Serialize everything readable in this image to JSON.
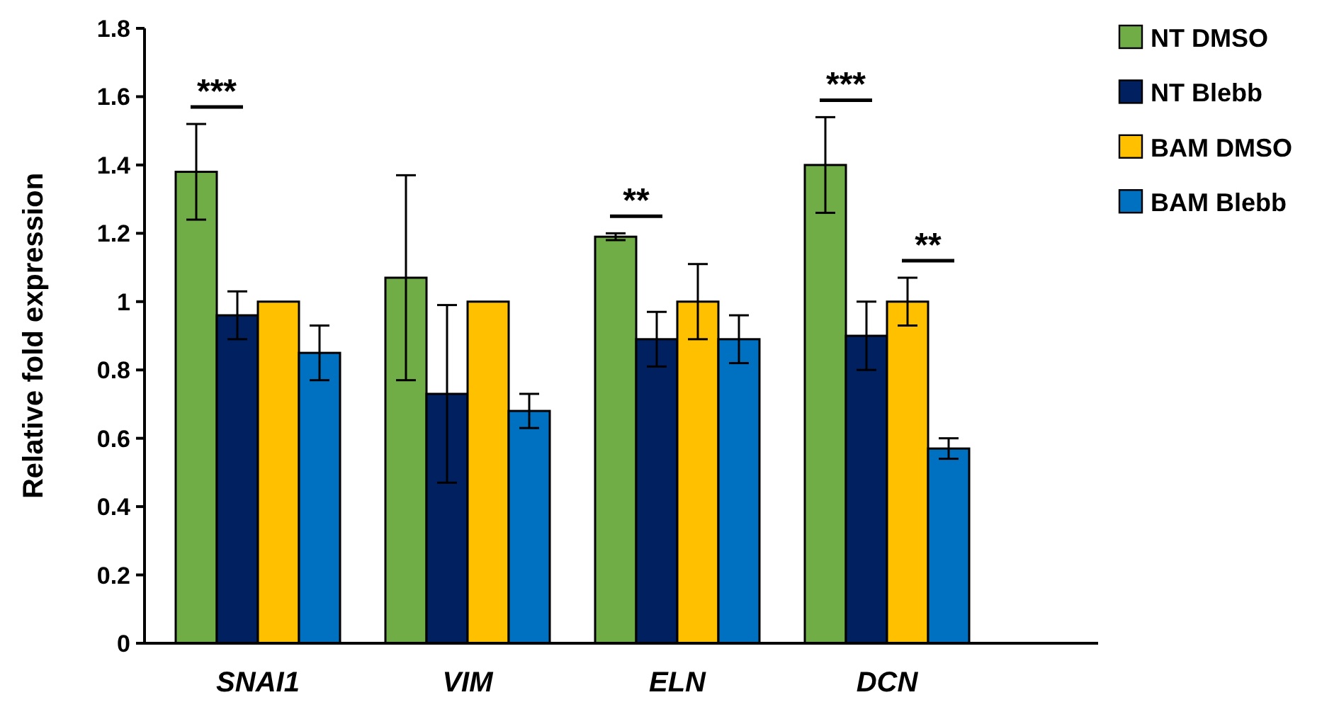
{
  "chart_data": {
    "type": "bar",
    "ylabel": "Relative fold expression",
    "categories": [
      "SNAI1",
      "VIM",
      "ELN",
      "DCN"
    ],
    "series": [
      {
        "name": "NT DMSO",
        "color": "#70ad47",
        "values": [
          1.38,
          1.07,
          1.19,
          1.4
        ],
        "errors": [
          0.14,
          0.3,
          0.01,
          0.14
        ]
      },
      {
        "name": "NT Blebb",
        "color": "#002060",
        "values": [
          0.96,
          0.73,
          0.89,
          0.9
        ],
        "errors": [
          0.07,
          0.26,
          0.08,
          0.1
        ]
      },
      {
        "name": "BAM DMSO",
        "color": "#ffc000",
        "values": [
          1,
          1,
          1,
          1
        ],
        "errors": [
          null,
          null,
          0.11,
          0.07
        ]
      },
      {
        "name": "BAM Blebb",
        "color": "#0070c0",
        "values": [
          0.85,
          0.68,
          0.89,
          0.57
        ],
        "errors": [
          0.08,
          0.05,
          0.07,
          0.03
        ]
      }
    ],
    "ylim": [
      0,
      1.8
    ],
    "yticks": [
      0,
      0.2,
      0.4,
      0.6,
      0.8,
      1,
      1.2,
      1.4,
      1.6,
      1.8
    ],
    "grid": false,
    "legend": "top right",
    "annotations": [
      "***",
      "**",
      "***",
      "**"
    ]
  }
}
